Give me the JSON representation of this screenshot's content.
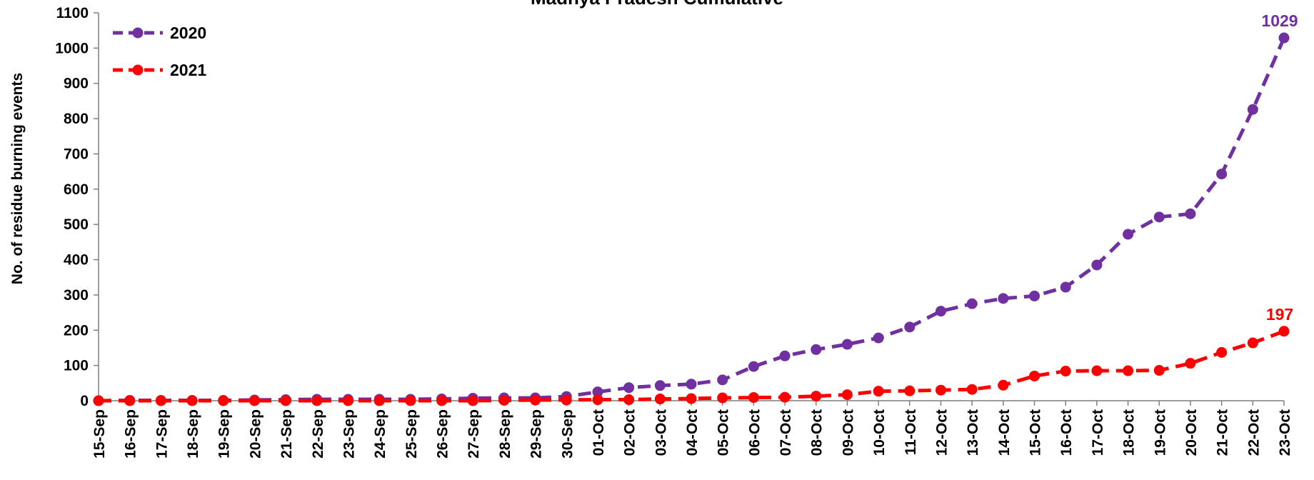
{
  "chart_data": {
    "type": "line",
    "title": "Madhya Pradesh Cumulative",
    "xlabel": "",
    "ylabel": "No. of residue burning events",
    "ylim": [
      0,
      1100
    ],
    "yticks": [
      0,
      100,
      200,
      300,
      400,
      500,
      600,
      700,
      800,
      900,
      1000,
      1100
    ],
    "grid": false,
    "legend_position": "top-left",
    "categories": [
      "15-Sep",
      "16-Sep",
      "17-Sep",
      "18-Sep",
      "19-Sep",
      "20-Sep",
      "21-Sep",
      "22-Sep",
      "23-Sep",
      "24-Sep",
      "25-Sep",
      "26-Sep",
      "27-Sep",
      "28-Sep",
      "29-Sep",
      "30-Sep",
      "01-Oct",
      "02-Oct",
      "03-Oct",
      "04-Oct",
      "05-Oct",
      "06-Oct",
      "07-Oct",
      "08-Oct",
      "09-Oct",
      "10-Oct",
      "11-Oct",
      "12-Oct",
      "13-Oct",
      "14-Oct",
      "15-Oct",
      "16-Oct",
      "17-Oct",
      "18-Oct",
      "19-Oct",
      "20-Oct",
      "21-Oct",
      "22-Oct",
      "23-Oct"
    ],
    "series": [
      {
        "name": "2020",
        "color": "#7030a0",
        "values": [
          0,
          1,
          1,
          1,
          1,
          2,
          3,
          4,
          4,
          4,
          4,
          5,
          7,
          8,
          8,
          12,
          25,
          37,
          43,
          47,
          59,
          97,
          127,
          145,
          160,
          178,
          209,
          254,
          275,
          290,
          297,
          322,
          385,
          472,
          521,
          530,
          643,
          826,
          1029
        ],
        "end_label": "1029"
      },
      {
        "name": "2021",
        "color": "#ff0000",
        "values": [
          0,
          0,
          0,
          0,
          0,
          0,
          0,
          0,
          0,
          0,
          0,
          0,
          0,
          1,
          2,
          2,
          3,
          3,
          5,
          6,
          8,
          9,
          10,
          13,
          17,
          27,
          28,
          30,
          32,
          44,
          70,
          84,
          85,
          85,
          86,
          106,
          137,
          164,
          197
        ],
        "end_label": "197"
      }
    ]
  }
}
